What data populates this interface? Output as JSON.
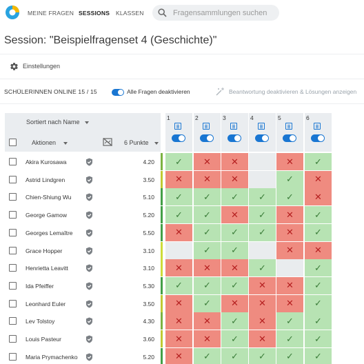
{
  "nav": {
    "items": [
      {
        "label": "MEINE FRAGEN",
        "active": false
      },
      {
        "label": "SESSIONS",
        "active": true
      },
      {
        "label": "KLASSEN",
        "active": false
      }
    ],
    "search_placeholder": "Fragensammlungen suchen"
  },
  "page": {
    "title": "Session: \"Beispielfragenset 4 (Geschichte)\"",
    "settings_label": "Einstellungen"
  },
  "controls": {
    "online_label": "SCHÜLERINNEN ONLINE 15 / 15",
    "all_questions_label": "Alle Fragen deaktivieren",
    "disable_answers_label": "Beantwortung deaktivieren & Lösungen anzeigen"
  },
  "table": {
    "sort_label": "Sortiert nach Name",
    "actions_label": "Aktionen",
    "points_label": "6 Punkte",
    "questions": [
      "1",
      "2",
      "3",
      "4",
      "5",
      "6"
    ],
    "rows": [
      {
        "name": "Akira Kurosawa",
        "points": "4.20",
        "bar": "#7cb342",
        "results": [
          "ok",
          "bad",
          "bad",
          "empty",
          "bad",
          "ok"
        ]
      },
      {
        "name": "Astrid Lindgren",
        "points": "3.50",
        "bar": "#c0ca33",
        "results": [
          "bad",
          "bad",
          "bad",
          "empty",
          "ok",
          "bad"
        ]
      },
      {
        "name": "Chien-Shiung Wu",
        "points": "5.10",
        "bar": "#43a047",
        "results": [
          "ok",
          "ok",
          "ok",
          "ok",
          "ok",
          "bad"
        ]
      },
      {
        "name": "George Gamow",
        "points": "5.20",
        "bar": "#43a047",
        "results": [
          "ok",
          "ok",
          "bad",
          "ok",
          "bad",
          "ok"
        ]
      },
      {
        "name": "Georges Lemaître",
        "points": "5.50",
        "bar": "#43a047",
        "results": [
          "bad",
          "ok",
          "ok",
          "ok",
          "bad",
          "ok"
        ]
      },
      {
        "name": "Grace Hopper",
        "points": "3.10",
        "bar": "#cddc39",
        "results": [
          "empty",
          "ok",
          "ok",
          "empty",
          "bad",
          "bad"
        ]
      },
      {
        "name": "Henrietta Leavitt",
        "points": "3.10",
        "bar": "#cddc39",
        "results": [
          "bad",
          "bad",
          "bad",
          "ok",
          "empty",
          "ok"
        ]
      },
      {
        "name": "Ida Pfeiffer",
        "points": "5.30",
        "bar": "#43a047",
        "results": [
          "ok",
          "ok",
          "ok",
          "bad",
          "bad",
          "ok"
        ]
      },
      {
        "name": "Leonhard Euler",
        "points": "3.50",
        "bar": "#c0ca33",
        "results": [
          "bad",
          "ok",
          "bad",
          "bad",
          "bad",
          "ok"
        ]
      },
      {
        "name": "Lev Tolstoy",
        "points": "4.30",
        "bar": "#7cb342",
        "results": [
          "bad",
          "bad",
          "ok",
          "bad",
          "ok",
          "ok"
        ]
      },
      {
        "name": "Louis Pasteur",
        "points": "3.60",
        "bar": "#c0ca33",
        "results": [
          "bad",
          "bad",
          "ok",
          "bad",
          "ok",
          "ok"
        ]
      },
      {
        "name": "Maria Prymachenko",
        "points": "5.20",
        "bar": "#43a047",
        "results": [
          "bad",
          "ok",
          "ok",
          "ok",
          "ok",
          "ok"
        ]
      }
    ]
  },
  "colors": {
    "accent": "#1976d2",
    "correct_bg": "#b7e3b3",
    "wrong_bg": "#ef8b80",
    "empty_bg": "#e9ecee"
  }
}
